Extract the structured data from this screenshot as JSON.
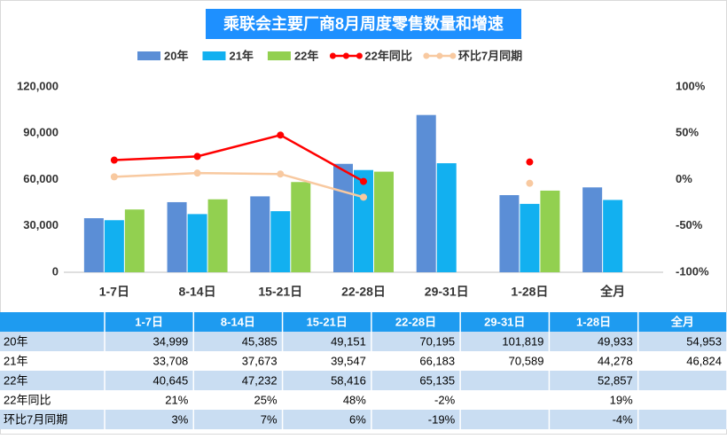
{
  "chart_data": {
    "type": "bar",
    "title": "乘联会主要厂商8月周度零售数量和增速",
    "categories": [
      "1-7日",
      "8-14日",
      "15-21日",
      "22-28日",
      "29-31日",
      "1-28日",
      "全月"
    ],
    "series": [
      {
        "name": "20年",
        "type": "bar",
        "color": "#5b8ed6",
        "values": [
          34999,
          45385,
          49151,
          70195,
          101819,
          49933,
          54953
        ],
        "value_labels": [
          "34,999",
          "45,385",
          "49,151",
          "70,195",
          "101,819",
          "49,933",
          "54,953"
        ]
      },
      {
        "name": "21年",
        "type": "bar",
        "color": "#12b0f0",
        "values": [
          33708,
          37673,
          39547,
          66183,
          70589,
          44278,
          46824
        ],
        "value_labels": [
          "33,708",
          "37,673",
          "39,547",
          "66,183",
          "70,589",
          "44,278",
          "46,824"
        ]
      },
      {
        "name": "22年",
        "type": "bar",
        "color": "#92d050",
        "values": [
          40645,
          47232,
          58416,
          65135,
          null,
          52857,
          null
        ],
        "value_labels": [
          "40,645",
          "47,232",
          "58,416",
          "65,135",
          null,
          "52,857",
          null
        ]
      },
      {
        "name": "22年同比",
        "type": "line",
        "axis": "y2",
        "color": "#ff0000",
        "values": [
          21,
          25,
          48,
          -2,
          null,
          19,
          null
        ],
        "value_labels": [
          "21%",
          "25%",
          "48%",
          "-2%",
          null,
          "19%",
          null
        ]
      },
      {
        "name": "环比7月同期",
        "type": "line",
        "axis": "y2",
        "color": "#f8c9a0",
        "values": [
          3,
          7,
          6,
          -19,
          null,
          -4,
          null
        ],
        "value_labels": [
          "3%",
          "7%",
          "6%",
          "-19%",
          null,
          "-4%",
          null
        ]
      }
    ],
    "ylim": [
      0,
      120000
    ],
    "yticks": [
      0,
      {
        "value": 30000,
        "label": "30,000"
      },
      {
        "value": 60000,
        "label": "60,000"
      },
      {
        "value": 90000,
        "label": "90,000"
      },
      {
        "value": 120000,
        "label": "120,000"
      }
    ],
    "y2lim": [
      -100,
      100
    ],
    "y2ticks": [
      {
        "value": -100,
        "label": "-100%"
      },
      {
        "value": -50,
        "label": "-50%"
      },
      {
        "value": 0,
        "label": "0%"
      },
      {
        "value": 50,
        "label": "50%"
      },
      {
        "value": 100,
        "label": "100%"
      }
    ],
    "grid": false
  }
}
